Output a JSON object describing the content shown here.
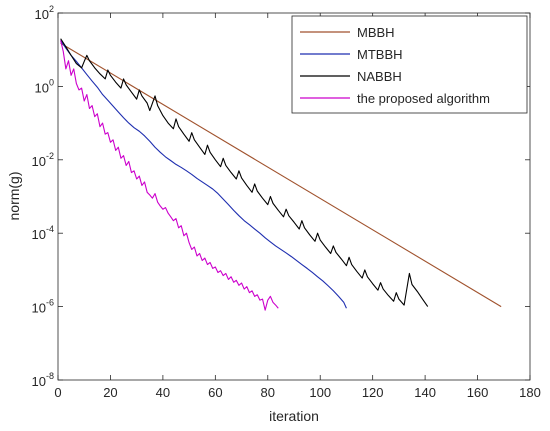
{
  "chart_data": {
    "type": "line",
    "xlabel": "iteration",
    "ylabel": "norm(g)",
    "xlim": [
      0,
      180
    ],
    "ylim": [
      1e-08,
      100
    ],
    "y_scale": "log",
    "grid": false,
    "legend_position": "top-right",
    "x_ticks": [
      "0",
      "20",
      "40",
      "60",
      "80",
      "100",
      "120",
      "140",
      "160",
      "180"
    ],
    "y_ticks": [
      {
        "base": "10",
        "exp": "2"
      },
      {
        "base": "10",
        "exp": "0"
      },
      {
        "base": "10",
        "exp": "-2"
      },
      {
        "base": "10",
        "exp": "-4"
      },
      {
        "base": "10",
        "exp": "-6"
      },
      {
        "base": "10",
        "exp": "-8"
      }
    ],
    "series": [
      {
        "name": "MBBH",
        "color": "#a0522d",
        "points": [
          [
            1,
            15
          ],
          [
            169,
            1e-06
          ]
        ]
      },
      {
        "name": "MTBBH",
        "color": "#1f2fb0",
        "points": [
          [
            1,
            18
          ],
          [
            3,
            11
          ],
          [
            5,
            7
          ],
          [
            7,
            4.8
          ],
          [
            9,
            3.2
          ],
          [
            11,
            2.1
          ],
          [
            13,
            1.4
          ],
          [
            15,
            0.95
          ],
          [
            17,
            0.6
          ],
          [
            19,
            0.42
          ],
          [
            21,
            0.29
          ],
          [
            23,
            0.2
          ],
          [
            25,
            0.14
          ],
          [
            27,
            0.1
          ],
          [
            29,
            0.075
          ],
          [
            31,
            0.06
          ],
          [
            33,
            0.045
          ],
          [
            35,
            0.032
          ],
          [
            37,
            0.022
          ],
          [
            39,
            0.016
          ],
          [
            41,
            0.012
          ],
          [
            43,
            0.0095
          ],
          [
            45,
            0.0075
          ],
          [
            47,
            0.0062
          ],
          [
            49,
            0.005
          ],
          [
            51,
            0.004
          ],
          [
            53,
            0.0031
          ],
          [
            55,
            0.0025
          ],
          [
            57,
            0.002
          ],
          [
            59,
            0.0016
          ],
          [
            61,
            0.0012
          ],
          [
            63,
            0.00085
          ],
          [
            65,
            0.0006
          ],
          [
            67,
            0.00042
          ],
          [
            69,
            0.0003
          ],
          [
            71,
            0.00022
          ],
          [
            73,
            0.00017
          ],
          [
            75,
            0.00013
          ],
          [
            77,
            0.0001
          ],
          [
            79,
            7.5e-05
          ],
          [
            81,
            5.8e-05
          ],
          [
            83,
            4.5e-05
          ],
          [
            85,
            3.6e-05
          ],
          [
            87,
            2.9e-05
          ],
          [
            89,
            2.3e-05
          ],
          [
            91,
            1.8e-05
          ],
          [
            93,
            1.4e-05
          ],
          [
            95,
            1.1e-05
          ],
          [
            97,
            8.5e-06
          ],
          [
            99,
            6.5e-06
          ],
          [
            101,
            5e-06
          ],
          [
            103,
            3.7e-06
          ],
          [
            105,
            2.7e-06
          ],
          [
            107,
            1.9e-06
          ],
          [
            109,
            1.3e-06
          ],
          [
            110,
            9e-07
          ]
        ]
      },
      {
        "name": "NABBH",
        "color": "#000000",
        "points": [
          [
            1,
            20
          ],
          [
            3,
            12
          ],
          [
            5,
            7
          ],
          [
            7,
            4.2
          ],
          [
            9,
            3.2
          ],
          [
            10,
            4.8
          ],
          [
            11,
            7
          ],
          [
            12,
            5
          ],
          [
            14,
            3.2
          ],
          [
            16,
            2.2
          ],
          [
            18,
            1.6
          ],
          [
            19,
            2.8
          ],
          [
            20,
            2
          ],
          [
            22,
            1.3
          ],
          [
            24,
            0.9
          ],
          [
            25,
            1.6
          ],
          [
            26,
            1.1
          ],
          [
            28,
            0.7
          ],
          [
            30,
            0.45
          ],
          [
            31,
            0.8
          ],
          [
            32,
            0.55
          ],
          [
            34,
            0.35
          ],
          [
            35,
            0.22
          ],
          [
            37,
            0.55
          ],
          [
            38,
            0.3
          ],
          [
            40,
            0.16
          ],
          [
            42,
            0.1
          ],
          [
            44,
            0.07
          ],
          [
            45,
            0.13
          ],
          [
            46,
            0.08
          ],
          [
            48,
            0.05
          ],
          [
            50,
            0.032
          ],
          [
            51,
            0.055
          ],
          [
            52,
            0.035
          ],
          [
            54,
            0.022
          ],
          [
            56,
            0.014
          ],
          [
            57,
            0.025
          ],
          [
            58,
            0.016
          ],
          [
            60,
            0.01
          ],
          [
            62,
            0.0065
          ],
          [
            63,
            0.011
          ],
          [
            64,
            0.007
          ],
          [
            66,
            0.0045
          ],
          [
            68,
            0.003
          ],
          [
            69,
            0.005
          ],
          [
            70,
            0.0032
          ],
          [
            72,
            0.002
          ],
          [
            74,
            0.0013
          ],
          [
            75,
            0.0022
          ],
          [
            76,
            0.0014
          ],
          [
            78,
            0.0009
          ],
          [
            80,
            0.0006
          ],
          [
            81,
            0.001
          ],
          [
            82,
            0.00065
          ],
          [
            84,
            0.00042
          ],
          [
            86,
            0.00028
          ],
          [
            87,
            0.00045
          ],
          [
            88,
            0.0003
          ],
          [
            90,
            0.0002
          ],
          [
            92,
            0.00013
          ],
          [
            93,
            0.00022
          ],
          [
            94,
            0.00014
          ],
          [
            96,
            9e-05
          ],
          [
            98,
            6e-05
          ],
          [
            99,
            0.0001
          ],
          [
            100,
            6.5e-05
          ],
          [
            102,
            4.2e-05
          ],
          [
            104,
            2.8e-05
          ],
          [
            105,
            4.5e-05
          ],
          [
            106,
            3e-05
          ],
          [
            108,
            2e-05
          ],
          [
            110,
            1.3e-05
          ],
          [
            111,
            2.2e-05
          ],
          [
            112,
            1.4e-05
          ],
          [
            114,
            9e-06
          ],
          [
            116,
            6e-06
          ],
          [
            117,
            1e-05
          ],
          [
            118,
            6.5e-06
          ],
          [
            120,
            4.2e-06
          ],
          [
            122,
            2.8e-06
          ],
          [
            123,
            4.5e-06
          ],
          [
            124,
            3e-06
          ],
          [
            126,
            2e-06
          ],
          [
            128,
            1.4e-06
          ],
          [
            129,
            2.4e-06
          ],
          [
            130,
            1.6e-06
          ],
          [
            132,
            1.1e-06
          ],
          [
            134,
            8e-06
          ],
          [
            135,
            4e-06
          ],
          [
            137,
            2.6e-06
          ],
          [
            139,
            1.6e-06
          ],
          [
            141,
            1e-06
          ]
        ]
      },
      {
        "name": "the proposed algorithm",
        "color": "#cc00cc",
        "points": [
          [
            1,
            18
          ],
          [
            2,
            9
          ],
          [
            3,
            3
          ],
          [
            4,
            5
          ],
          [
            5,
            2
          ],
          [
            6,
            3
          ],
          [
            7,
            1.2
          ],
          [
            8,
            0.8
          ],
          [
            9,
            0.9
          ],
          [
            10,
            0.4
          ],
          [
            11,
            0.6
          ],
          [
            12,
            0.25
          ],
          [
            13,
            0.3
          ],
          [
            14,
            0.15
          ],
          [
            15,
            0.18
          ],
          [
            16,
            0.08
          ],
          [
            17,
            0.1
          ],
          [
            18,
            0.05
          ],
          [
            19,
            0.055
          ],
          [
            20,
            0.03
          ],
          [
            21,
            0.035
          ],
          [
            22,
            0.018
          ],
          [
            23,
            0.022
          ],
          [
            24,
            0.011
          ],
          [
            25,
            0.013
          ],
          [
            26,
            0.007
          ],
          [
            27,
            0.009
          ],
          [
            28,
            0.0045
          ],
          [
            29,
            0.005
          ],
          [
            30,
            0.003
          ],
          [
            31,
            0.0036
          ],
          [
            32,
            0.002
          ],
          [
            33,
            0.0025
          ],
          [
            34,
            0.0013
          ],
          [
            35,
            0.0011
          ],
          [
            36,
            0.0009
          ],
          [
            37,
            0.0012
          ],
          [
            38,
            0.0007
          ],
          [
            39,
            0.00055
          ],
          [
            40,
            0.00045
          ],
          [
            41,
            0.0005
          ],
          [
            42,
            0.00035
          ],
          [
            43,
            0.00028
          ],
          [
            44,
            0.00022
          ],
          [
            45,
            0.00025
          ],
          [
            46,
            0.00014
          ],
          [
            47,
            0.00016
          ],
          [
            48,
            8.5e-05
          ],
          [
            49,
            0.0001
          ],
          [
            50,
            5.5e-05
          ],
          [
            51,
            3.6e-05
          ],
          [
            52,
            4.2e-05
          ],
          [
            53,
            2.4e-05
          ],
          [
            54,
            2.8e-05
          ],
          [
            55,
            1.8e-05
          ],
          [
            56,
            2.1e-05
          ],
          [
            57,
            1.4e-05
          ],
          [
            58,
            1.6e-05
          ],
          [
            59,
            1.1e-05
          ],
          [
            60,
            1.2e-05
          ],
          [
            61,
            8.5e-06
          ],
          [
            62,
            9.5e-06
          ],
          [
            63,
            7e-06
          ],
          [
            64,
            8e-06
          ],
          [
            65,
            5.5e-06
          ],
          [
            66,
            6.5e-06
          ],
          [
            67,
            4.6e-06
          ],
          [
            68,
            5.2e-06
          ],
          [
            69,
            3.8e-06
          ],
          [
            70,
            4.4e-06
          ],
          [
            71,
            3e-06
          ],
          [
            72,
            3.5e-06
          ],
          [
            73,
            2.4e-06
          ],
          [
            74,
            2.7e-06
          ],
          [
            75,
            1.9e-06
          ],
          [
            76,
            2.1e-06
          ],
          [
            77,
            1.5e-06
          ],
          [
            78,
            1.6e-06
          ],
          [
            79,
            8e-07
          ],
          [
            80,
            1.5e-06
          ],
          [
            81,
            1.9e-06
          ],
          [
            82,
            1.3e-06
          ],
          [
            83,
            1.1e-06
          ],
          [
            84,
            9e-07
          ]
        ]
      }
    ]
  }
}
